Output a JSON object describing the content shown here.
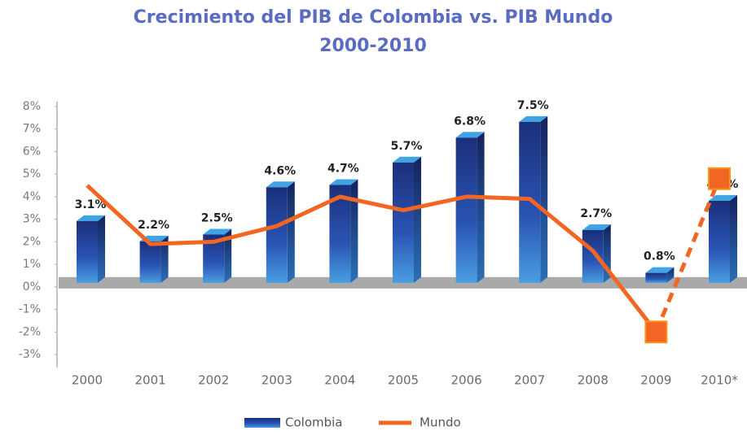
{
  "chart_data": {
    "type": "bar-line",
    "title": "Crecimiento del PIB de Colombia vs. PIB Mundo",
    "subtitle": "2000-2010",
    "categories": [
      "2000",
      "2001",
      "2002",
      "2003",
      "2004",
      "2005",
      "2006",
      "2007",
      "2008",
      "2009",
      "2010*"
    ],
    "series": [
      {
        "name": "Colombia",
        "type": "bar",
        "color": "#1f3a8a",
        "values": [
          3.1,
          2.2,
          2.5,
          4.6,
          4.7,
          5.7,
          6.8,
          7.5,
          2.7,
          0.8,
          4.0
        ],
        "value_labels": [
          "3.1%",
          "2.2%",
          "2.5%",
          "4.6%",
          "4.7%",
          "5.7%",
          "6.8%",
          "7.5%",
          "2.7%",
          "0.8%",
          "4.0%"
        ]
      },
      {
        "name": "Mundo",
        "type": "line",
        "color": "#f26522",
        "values": [
          4.5,
          1.9,
          2.0,
          2.7,
          4.0,
          3.4,
          4.0,
          3.9,
          1.6,
          -2.0,
          4.8
        ],
        "dashed_from": 9
      }
    ],
    "ylim": [
      -3,
      8
    ],
    "yticks": [
      {
        "value": -3,
        "label": "-3%"
      },
      {
        "value": -2,
        "label": "-2%"
      },
      {
        "value": -1,
        "label": "-1%"
      },
      {
        "value": 0,
        "label": "0%"
      },
      {
        "value": 1,
        "label": "1%"
      },
      {
        "value": 2,
        "label": "2%"
      },
      {
        "value": 3,
        "label": "3%"
      },
      {
        "value": 4,
        "label": "4%"
      },
      {
        "value": 5,
        "label": "5%"
      },
      {
        "value": 6,
        "label": "6%"
      },
      {
        "value": 7,
        "label": "7%"
      },
      {
        "value": 8,
        "label": "8%"
      }
    ],
    "grid": false,
    "legend": "bottom"
  }
}
